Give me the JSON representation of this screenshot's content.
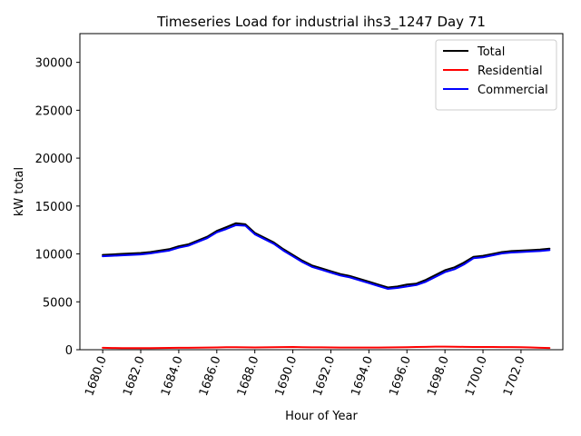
{
  "chart_data": {
    "type": "line",
    "title": "Timeseries Load for industrial ihs3_1247  Day 71",
    "xlabel": "Hour of Year",
    "ylabel": "kW total",
    "xlim": [
      1678.8,
      1704.2
    ],
    "ylim": [
      0,
      33000
    ],
    "x_ticks": [
      1680,
      1682,
      1684,
      1686,
      1688,
      1690,
      1692,
      1694,
      1696,
      1698,
      1700,
      1702
    ],
    "x_tick_labels": [
      "1680.0",
      "1682.0",
      "1684.0",
      "1686.0",
      "1688.0",
      "1690.0",
      "1692.0",
      "1694.0",
      "1696.0",
      "1698.0",
      "1700.0",
      "1702.0"
    ],
    "y_ticks": [
      0,
      5000,
      10000,
      15000,
      20000,
      25000,
      30000
    ],
    "y_tick_labels": [
      "0",
      "5000",
      "10000",
      "15000",
      "20000",
      "25000",
      "30000"
    ],
    "legend_position": "top-right",
    "grid": false,
    "x": [
      1680.0,
      1680.5,
      1681.0,
      1681.5,
      1682.0,
      1682.5,
      1683.0,
      1683.5,
      1684.0,
      1684.5,
      1685.0,
      1685.5,
      1686.0,
      1686.5,
      1687.0,
      1687.5,
      1688.0,
      1688.5,
      1689.0,
      1689.5,
      1690.0,
      1690.5,
      1691.0,
      1691.5,
      1692.0,
      1692.5,
      1693.0,
      1693.5,
      1694.0,
      1694.5,
      1695.0,
      1695.5,
      1696.0,
      1696.5,
      1697.0,
      1697.5,
      1698.0,
      1698.5,
      1699.0,
      1699.5,
      1700.0,
      1700.5,
      1701.0,
      1701.5,
      1702.0,
      1702.5,
      1703.0,
      1703.5
    ],
    "series": [
      {
        "name": "Total",
        "color": "#000000",
        "values": [
          9900,
          9950,
          10000,
          10050,
          10100,
          10200,
          10350,
          10500,
          10800,
          11000,
          11400,
          11800,
          12400,
          12800,
          13200,
          13100,
          12200,
          11700,
          11200,
          10500,
          9900,
          9300,
          8800,
          8500,
          8200,
          7900,
          7700,
          7400,
          7100,
          6800,
          6500,
          6600,
          6800,
          6900,
          7300,
          7800,
          8300,
          8600,
          9100,
          9700,
          9800,
          10000,
          10200,
          10300,
          10350,
          10400,
          10450,
          10550
        ]
      },
      {
        "name": "Residential",
        "color": "#ff0000",
        "values": [
          200,
          180,
          170,
          160,
          160,
          170,
          180,
          190,
          200,
          200,
          210,
          220,
          240,
          260,
          260,
          250,
          240,
          250,
          260,
          270,
          280,
          260,
          250,
          250,
          240,
          230,
          230,
          220,
          220,
          230,
          240,
          250,
          260,
          280,
          300,
          320,
          320,
          310,
          300,
          290,
          290,
          280,
          270,
          270,
          260,
          240,
          200,
          180
        ]
      },
      {
        "name": "Commercial",
        "color": "#0000ff",
        "values": [
          9750,
          9800,
          9850,
          9900,
          9950,
          10050,
          10200,
          10350,
          10650,
          10850,
          11250,
          11650,
          12250,
          12600,
          13000,
          12950,
          12050,
          11550,
          11050,
          10350,
          9750,
          9150,
          8650,
          8350,
          8050,
          7750,
          7550,
          7250,
          6950,
          6650,
          6350,
          6450,
          6600,
          6750,
          7100,
          7600,
          8100,
          8400,
          8900,
          9550,
          9650,
          9850,
          10050,
          10150,
          10200,
          10250,
          10300,
          10400
        ]
      }
    ]
  }
}
